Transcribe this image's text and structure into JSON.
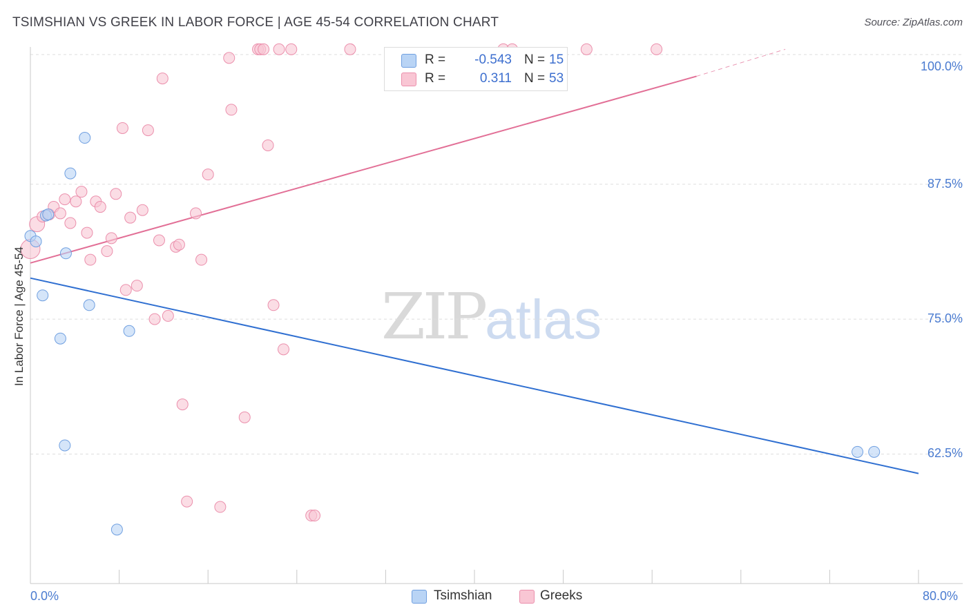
{
  "title": "TSIMSHIAN VS GREEK IN LABOR FORCE | AGE 45-54 CORRELATION CHART",
  "source": "Source: ZipAtlas.com",
  "colors": {
    "tsimshian_fill": "#b9d4f5",
    "tsimshian_stroke": "#6f9fe0",
    "tsimshian_line": "#2f6fd1",
    "greeks_fill": "#f9c6d4",
    "greeks_stroke": "#eb8fac",
    "greeks_line": "#e26f96",
    "axis_text": "#4a7bd0",
    "grid": "#dddddd"
  },
  "legend": {
    "rows": [
      {
        "name": "tsimshian",
        "r_label": "R =",
        "r_value": "-0.543",
        "n_label": "N =",
        "n_value": "15"
      },
      {
        "name": "greeks",
        "r_label": "R =",
        "r_value": "0.311",
        "n_label": "N =",
        "n_value": "53"
      }
    ]
  },
  "bottom_legend": {
    "tsimshian": "Tsimshian",
    "greeks": "Greeks"
  },
  "watermark": {
    "zip": "ZIP",
    "atlas": "atlas"
  },
  "chart_data": {
    "type": "scatter",
    "title": "TSIMSHIAN VS GREEK IN LABOR FORCE | AGE 45-54 CORRELATION CHART",
    "xlabel": "",
    "ylabel": "In Labor Force | Age 45-54",
    "xlim": [
      0,
      80
    ],
    "ylim": [
      50.5,
      100.6
    ],
    "x_tick_labels": {
      "min": "0.0%",
      "max": "80.0%"
    },
    "y_ticks": [
      100.0,
      87.5,
      75.0,
      62.5
    ],
    "y_tick_labels": [
      "100.0%",
      "87.5%",
      "75.0%",
      "62.5%"
    ],
    "grid": true,
    "series": [
      {
        "name": "Tsimshian",
        "points": [
          [
            0.0,
            82.7
          ],
          [
            0.5,
            82.2
          ],
          [
            1.1,
            77.2
          ],
          [
            1.4,
            84.6
          ],
          [
            1.6,
            84.7
          ],
          [
            2.7,
            73.2
          ],
          [
            3.1,
            63.3
          ],
          [
            3.2,
            81.1
          ],
          [
            3.6,
            88.5
          ],
          [
            4.9,
            91.8
          ],
          [
            5.3,
            76.3
          ],
          [
            7.8,
            55.5
          ],
          [
            8.9,
            73.9
          ],
          [
            74.5,
            62.7
          ],
          [
            76.0,
            62.7
          ]
        ],
        "trend": {
          "x": [
            0,
            80
          ],
          "y": [
            78.8,
            60.7
          ]
        }
      },
      {
        "name": "Greeks",
        "points": [
          [
            0.0,
            81.5
          ],
          [
            0.6,
            83.8
          ],
          [
            1.1,
            84.5
          ],
          [
            1.7,
            84.7
          ],
          [
            2.1,
            85.4
          ],
          [
            2.7,
            84.8
          ],
          [
            3.1,
            86.1
          ],
          [
            3.6,
            83.9
          ],
          [
            4.1,
            85.9
          ],
          [
            4.6,
            86.8
          ],
          [
            5.1,
            83.0
          ],
          [
            5.4,
            80.5
          ],
          [
            5.9,
            85.9
          ],
          [
            6.3,
            85.4
          ],
          [
            6.9,
            81.3
          ],
          [
            7.3,
            82.5
          ],
          [
            7.7,
            86.6
          ],
          [
            8.3,
            92.7
          ],
          [
            8.6,
            77.7
          ],
          [
            9.0,
            84.4
          ],
          [
            9.6,
            78.1
          ],
          [
            10.1,
            85.1
          ],
          [
            10.6,
            92.5
          ],
          [
            11.2,
            75.0
          ],
          [
            11.6,
            82.3
          ],
          [
            11.9,
            97.3
          ],
          [
            12.4,
            75.3
          ],
          [
            13.1,
            81.7
          ],
          [
            13.4,
            81.9
          ],
          [
            13.7,
            67.1
          ],
          [
            14.1,
            58.1
          ],
          [
            14.9,
            84.8
          ],
          [
            15.4,
            80.5
          ],
          [
            16.0,
            88.4
          ],
          [
            17.1,
            57.6
          ],
          [
            17.9,
            99.2
          ],
          [
            18.1,
            94.4
          ],
          [
            19.3,
            65.9
          ],
          [
            20.5,
            100.0
          ],
          [
            20.7,
            100.0
          ],
          [
            21.0,
            100.0
          ],
          [
            21.4,
            91.1
          ],
          [
            21.9,
            76.3
          ],
          [
            22.4,
            100.0
          ],
          [
            22.8,
            72.2
          ],
          [
            23.5,
            100.0
          ],
          [
            25.3,
            56.8
          ],
          [
            25.6,
            56.8
          ],
          [
            28.8,
            100.0
          ],
          [
            42.6,
            100.0
          ],
          [
            43.4,
            100.0
          ],
          [
            50.1,
            100.0
          ],
          [
            56.4,
            100.0
          ]
        ],
        "trend": {
          "x": [
            0,
            60
          ],
          "y": [
            80.2,
            97.5
          ],
          "dashed_extension": {
            "x": [
              60,
              68
            ],
            "y": [
              97.5,
              100.0
            ]
          }
        }
      }
    ]
  }
}
